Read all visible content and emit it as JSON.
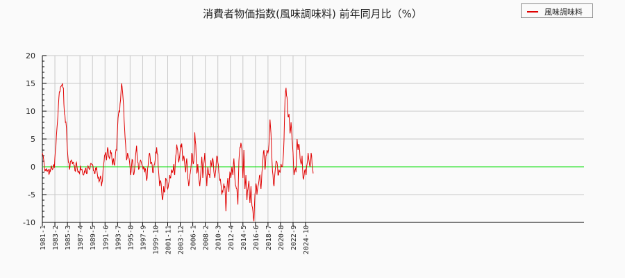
{
  "title": "消費者物価指数(風味調味料) 前年同月比（%）",
  "legend": {
    "label": "風味調味料",
    "color": "#e00000"
  },
  "colors": {
    "series": "#e00000",
    "zero_line": "#00dd00",
    "grid": "#c8c8c8",
    "axis": "#000000",
    "background": "#fafafa"
  },
  "chart_data": {
    "type": "line",
    "title": "消費者物価指数(風味調味料) 前年同月比（%）",
    "xlabel": "",
    "ylabel": "",
    "ylim": [
      -10,
      20
    ],
    "yticks": [
      -10,
      -5,
      0,
      5,
      10,
      15,
      20
    ],
    "xticks": [
      "1981-1",
      "1983-2",
      "1985-3",
      "1987-4",
      "1989-5",
      "1991-6",
      "1993-7",
      "1995-8",
      "1997-9",
      "1999-10",
      "2001-11",
      "2003-12",
      "2006-1",
      "2008-2",
      "2010-3",
      "2012-4",
      "2014-5",
      "2016-6",
      "2018-7",
      "2020-8",
      "2022-9",
      "2024-10"
    ],
    "grid": true,
    "legend_position": "top-right",
    "reference_line": 0,
    "x_start": "1981-1",
    "months": 540,
    "series": [
      {
        "name": "風味調味料",
        "keypoints": [
          [
            0,
            2.5
          ],
          [
            2,
            1.8
          ],
          [
            4,
            0
          ],
          [
            6,
            -0.5
          ],
          [
            8,
            -0.3
          ],
          [
            10,
            -0.8
          ],
          [
            12,
            -0.5
          ],
          [
            14,
            -1.2
          ],
          [
            16,
            -0.8
          ],
          [
            18,
            0.2
          ],
          [
            20,
            -0.5
          ],
          [
            22,
            0.3
          ],
          [
            24,
            -0.2
          ],
          [
            26,
            3
          ],
          [
            28,
            5.5
          ],
          [
            30,
            8
          ],
          [
            32,
            11
          ],
          [
            34,
            13.5
          ],
          [
            36,
            14.3
          ],
          [
            38,
            14.5
          ],
          [
            40,
            15
          ],
          [
            42,
            14.2
          ],
          [
            44,
            9.5
          ],
          [
            46,
            8
          ],
          [
            48,
            7
          ],
          [
            50,
            3
          ],
          [
            52,
            0.8
          ],
          [
            54,
            -0.5
          ],
          [
            56,
            1
          ],
          [
            58,
            1.2
          ],
          [
            60,
            0.5
          ],
          [
            62,
            0.8
          ],
          [
            64,
            0.2
          ],
          [
            66,
            -0.8
          ],
          [
            68,
            0.8
          ],
          [
            70,
            -0.5
          ],
          [
            72,
            -0.8
          ],
          [
            74,
            -1.2
          ],
          [
            76,
            0.2
          ],
          [
            78,
            -0.5
          ],
          [
            80,
            -1
          ],
          [
            82,
            -1.5
          ],
          [
            84,
            -0.8
          ],
          [
            86,
            -0.3
          ],
          [
            88,
            -1.2
          ],
          [
            90,
            -0.6
          ],
          [
            92,
            0
          ],
          [
            94,
            -0.5
          ],
          [
            96,
            0.5
          ],
          [
            98,
            0.5
          ],
          [
            100,
            0.4
          ],
          [
            102,
            -0.7
          ],
          [
            104,
            -1.2
          ],
          [
            106,
            -0.3
          ],
          [
            108,
            0
          ],
          [
            110,
            -1.5
          ],
          [
            112,
            -1.8
          ],
          [
            114,
            -2.5
          ],
          [
            116,
            -1.6
          ],
          [
            118,
            -3.5
          ],
          [
            120,
            -2.5
          ],
          [
            122,
            0.3
          ],
          [
            124,
            2
          ],
          [
            126,
            2.6
          ],
          [
            128,
            1.2
          ],
          [
            130,
            3.5
          ],
          [
            132,
            2
          ],
          [
            134,
            1.5
          ],
          [
            136,
            3
          ],
          [
            138,
            2.5
          ],
          [
            140,
            0.3
          ],
          [
            142,
            1.5
          ],
          [
            144,
            0.3
          ],
          [
            146,
            2.5
          ],
          [
            148,
            3
          ],
          [
            150,
            7
          ],
          [
            152,
            9.5
          ],
          [
            154,
            9.8
          ],
          [
            156,
            12
          ],
          [
            158,
            15
          ],
          [
            160,
            13.5
          ],
          [
            162,
            11
          ],
          [
            164,
            7
          ],
          [
            166,
            4
          ],
          [
            168,
            1.2
          ],
          [
            170,
            2.5
          ],
          [
            172,
            1.8
          ],
          [
            174,
            0.8
          ],
          [
            176,
            -1.5
          ],
          [
            178,
            0.3
          ],
          [
            180,
            1.2
          ],
          [
            182,
            -1.5
          ],
          [
            184,
            -0.5
          ],
          [
            186,
            2.2
          ],
          [
            188,
            3.8
          ],
          [
            190,
            0.8
          ],
          [
            192,
            -0.5
          ],
          [
            194,
            0
          ],
          [
            196,
            1.2
          ],
          [
            198,
            0.5
          ],
          [
            200,
            0
          ],
          [
            202,
            0
          ],
          [
            204,
            -1
          ],
          [
            206,
            -0.5
          ],
          [
            208,
            -2.5
          ],
          [
            210,
            -0.3
          ],
          [
            212,
            1.5
          ],
          [
            214,
            2.5
          ],
          [
            216,
            0.5
          ],
          [
            218,
            0.8
          ],
          [
            220,
            -1
          ],
          [
            222,
            -0.5
          ],
          [
            224,
            0.5
          ],
          [
            226,
            2.6
          ],
          [
            228,
            3.5
          ],
          [
            230,
            2.2
          ],
          [
            232,
            -1
          ],
          [
            234,
            -3.5
          ],
          [
            236,
            -2.5
          ],
          [
            238,
            -4.5
          ],
          [
            240,
            -6
          ],
          [
            242,
            -3.5
          ],
          [
            244,
            -4.5
          ],
          [
            246,
            -2
          ],
          [
            248,
            -2.5
          ],
          [
            250,
            -4
          ],
          [
            252,
            -3
          ],
          [
            254,
            -1.5
          ],
          [
            256,
            -2
          ],
          [
            258,
            -0.5
          ],
          [
            260,
            -0.8
          ],
          [
            262,
            0.5
          ],
          [
            264,
            -1.5
          ],
          [
            266,
            2
          ],
          [
            268,
            4
          ],
          [
            270,
            3
          ],
          [
            272,
            0.8
          ],
          [
            274,
            2
          ],
          [
            276,
            4
          ],
          [
            278,
            4.2
          ],
          [
            280,
            1
          ],
          [
            282,
            2
          ],
          [
            284,
            0.5
          ],
          [
            286,
            -1
          ],
          [
            288,
            1.5
          ],
          [
            290,
            -2
          ],
          [
            292,
            -3.5
          ],
          [
            294,
            -1.5
          ],
          [
            296,
            -0.5
          ],
          [
            298,
            2.5
          ],
          [
            300,
            1
          ],
          [
            302,
            1
          ],
          [
            304,
            6.2
          ],
          [
            306,
            4
          ],
          [
            308,
            -1.2
          ],
          [
            310,
            0.5
          ],
          [
            312,
            -2
          ],
          [
            314,
            -3.5
          ],
          [
            316,
            -1
          ],
          [
            318,
            1.8
          ],
          [
            320,
            -2
          ],
          [
            322,
            0.5
          ],
          [
            324,
            2.5
          ],
          [
            326,
            -1
          ],
          [
            328,
            -3.5
          ],
          [
            330,
            0
          ],
          [
            332,
            -1.5
          ],
          [
            334,
            -2
          ],
          [
            336,
            1.2
          ],
          [
            338,
            0
          ],
          [
            340,
            1.5
          ],
          [
            342,
            -0.8
          ],
          [
            344,
            -2
          ],
          [
            346,
            -0.5
          ],
          [
            348,
            2
          ],
          [
            350,
            0.8
          ],
          [
            352,
            -1
          ],
          [
            354,
            -2.5
          ],
          [
            356,
            -3
          ],
          [
            358,
            -5
          ],
          [
            360,
            -4.5
          ],
          [
            362,
            -3
          ],
          [
            364,
            -3.5
          ],
          [
            366,
            -8
          ],
          [
            368,
            -4
          ],
          [
            370,
            -2
          ],
          [
            372,
            -4.5
          ],
          [
            374,
            -1
          ],
          [
            376,
            -2
          ],
          [
            378,
            0
          ],
          [
            380,
            -1.5
          ],
          [
            382,
            1.5
          ],
          [
            384,
            -2
          ],
          [
            386,
            -3.5
          ],
          [
            388,
            -4
          ],
          [
            390,
            -6.8
          ],
          [
            392,
            1
          ],
          [
            394,
            3.5
          ],
          [
            396,
            4.3
          ],
          [
            398,
            3
          ],
          [
            400,
            -2
          ],
          [
            402,
            3
          ],
          [
            404,
            -4
          ],
          [
            406,
            -1.5
          ],
          [
            408,
            -6
          ],
          [
            410,
            -4
          ],
          [
            412,
            -2.5
          ],
          [
            414,
            -6.5
          ],
          [
            416,
            -3.5
          ],
          [
            418,
            -7
          ],
          [
            420,
            -8
          ],
          [
            422,
            -9.8
          ],
          [
            424,
            -5
          ],
          [
            426,
            -3
          ],
          [
            428,
            -5
          ],
          [
            430,
            -3.5
          ],
          [
            432,
            -2.5
          ],
          [
            434,
            -1.5
          ],
          [
            436,
            -4
          ],
          [
            438,
            -1
          ],
          [
            440,
            1.5
          ],
          [
            442,
            3
          ],
          [
            444,
            -0.5
          ],
          [
            446,
            2
          ],
          [
            448,
            3
          ],
          [
            450,
            2.5
          ],
          [
            452,
            4
          ],
          [
            454,
            8.5
          ],
          [
            456,
            6
          ],
          [
            458,
            1
          ],
          [
            460,
            -1.5
          ],
          [
            462,
            -3.5
          ],
          [
            464,
            -1
          ],
          [
            466,
            1
          ],
          [
            468,
            0.8
          ],
          [
            470,
            -1.5
          ],
          [
            472,
            -0.5
          ],
          [
            474,
            -1
          ],
          [
            476,
            0.5
          ],
          [
            478,
            0
          ],
          [
            480,
            1.2
          ],
          [
            482,
            5
          ],
          [
            484,
            12
          ],
          [
            486,
            14.2
          ],
          [
            488,
            12.5
          ],
          [
            490,
            9
          ],
          [
            492,
            9.5
          ],
          [
            494,
            6
          ],
          [
            496,
            8
          ],
          [
            498,
            5
          ],
          [
            500,
            2.5
          ],
          [
            502,
            -1.5
          ],
          [
            504,
            -0.5
          ],
          [
            506,
            -1
          ],
          [
            508,
            5
          ],
          [
            510,
            3
          ],
          [
            512,
            4
          ],
          [
            514,
            1.5
          ],
          [
            516,
            0.5
          ],
          [
            518,
            2
          ],
          [
            520,
            -2
          ],
          [
            522,
            -1.5
          ],
          [
            524,
            -0.5
          ],
          [
            526,
            -1.5
          ],
          [
            528,
            0.5
          ],
          [
            530,
            2.5
          ],
          [
            532,
            1
          ],
          [
            534,
            0
          ],
          [
            536,
            2.5
          ],
          [
            538,
            0.5
          ],
          [
            540,
            -1.2
          ]
        ]
      }
    ]
  },
  "axis": {
    "y_labels": [
      "20",
      "15",
      "10",
      "5",
      "0",
      "-5",
      "-10"
    ],
    "x_labels": [
      "1981-1",
      "1983-2",
      "1985-3",
      "1987-4",
      "1989-5",
      "1991-6",
      "1993-7",
      "1995-8",
      "1997-9",
      "1999-10",
      "2001-11",
      "2003-12",
      "2006-1",
      "2008-2",
      "2010-3",
      "2012-4",
      "2014-5",
      "2016-6",
      "2018-7",
      "2020-8",
      "2022-9",
      "2024-10"
    ]
  }
}
